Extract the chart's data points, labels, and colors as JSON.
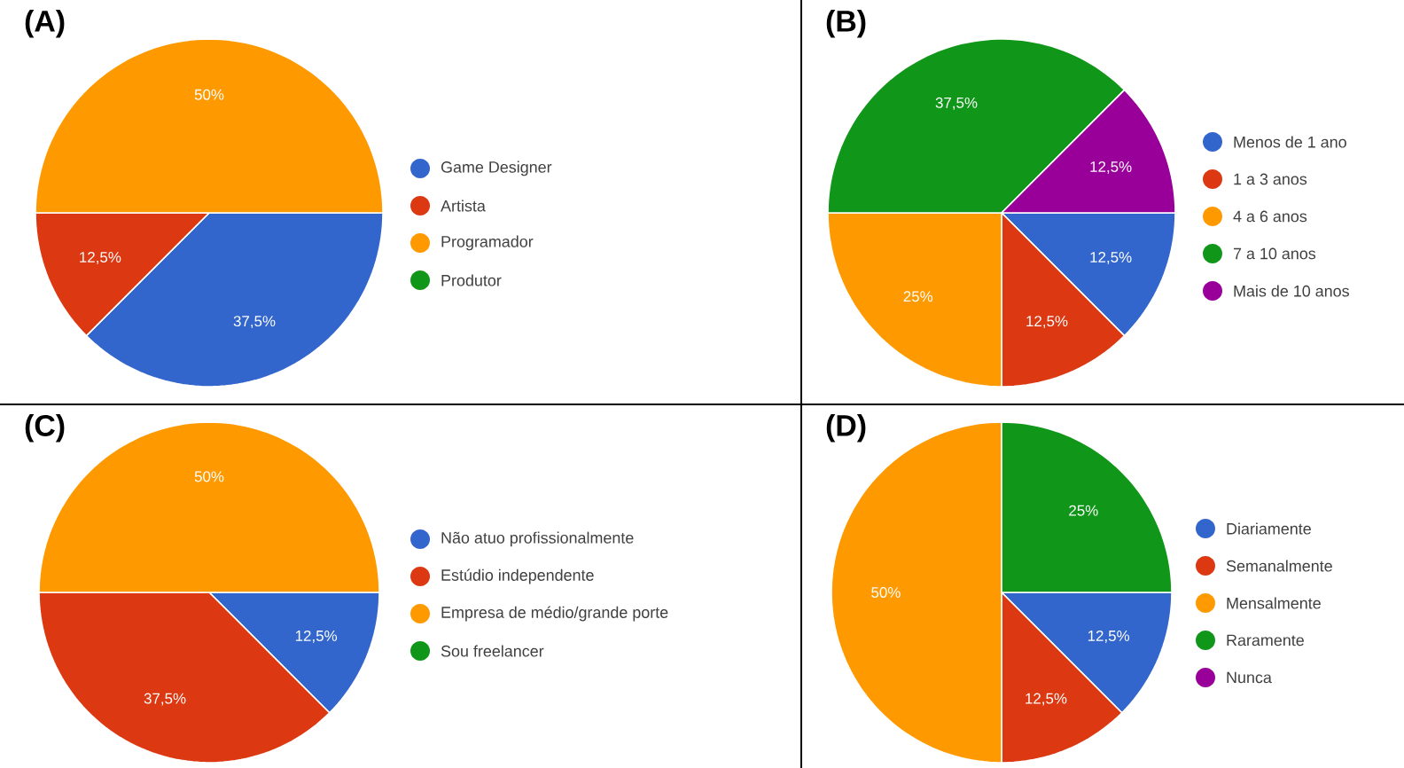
{
  "chart_data": [
    {
      "type": "pie",
      "title": "(A)",
      "legend": "right",
      "categories": [
        "Game Designer",
        "Artista",
        "Programador",
        "Produtor"
      ],
      "values": [
        37.5,
        12.5,
        50,
        0
      ],
      "colors": [
        "#3366cc",
        "#dc3912",
        "#ff9900",
        "#109618"
      ],
      "value_labels": [
        "37,5%",
        "12,5%",
        "50%",
        null
      ]
    },
    {
      "type": "pie",
      "title": "(B)",
      "legend": "right",
      "categories": [
        "Menos de 1 ano",
        "1 a 3 anos",
        "4 a 6 anos",
        "7 a 10 anos",
        "Mais de 10 anos"
      ],
      "values": [
        12.5,
        12.5,
        25,
        37.5,
        12.5
      ],
      "colors": [
        "#3366cc",
        "#dc3912",
        "#ff9900",
        "#109618",
        "#990099"
      ],
      "value_labels": [
        "12,5%",
        "12,5%",
        "25%",
        "37,5%",
        "12,5%"
      ]
    },
    {
      "type": "pie",
      "title": "(C)",
      "legend": "right",
      "categories": [
        "Não atuo profissionalmente",
        "Estúdio independente",
        "Empresa de médio/grande porte",
        "Sou freelancer"
      ],
      "values": [
        12.5,
        37.5,
        50,
        0
      ],
      "colors": [
        "#3366cc",
        "#dc3912",
        "#ff9900",
        "#109618"
      ],
      "value_labels": [
        "12,5%",
        "37,5%",
        "50%",
        null
      ]
    },
    {
      "type": "pie",
      "title": "(D)",
      "legend": "right",
      "categories": [
        "Diariamente",
        "Semanalmente",
        "Mensalmente",
        "Raramente",
        "Nunca"
      ],
      "values": [
        12.5,
        12.5,
        50,
        25,
        0
      ],
      "colors": [
        "#3366cc",
        "#dc3912",
        "#ff9900",
        "#109618",
        "#990099"
      ],
      "value_labels": [
        "12,5%",
        "12,5%",
        "50%",
        "25%",
        null
      ]
    }
  ]
}
